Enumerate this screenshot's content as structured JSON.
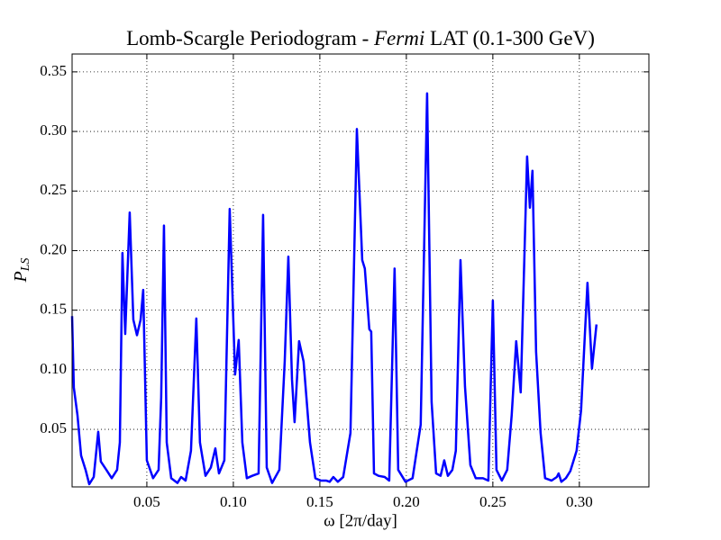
{
  "chart_data": {
    "type": "line",
    "title": [
      "Lomb-Scargle Periodogram - ",
      "Fermi",
      " LAT (0.1-300 GeV)"
    ],
    "xlabel": "ω [2π/day]",
    "ylabel": [
      "P",
      "LS"
    ],
    "xlim": [
      0.0068,
      0.3402
    ],
    "ylim": [
      0.0017,
      0.365
    ],
    "xticks": [
      0.05,
      {
        "value": 0.1,
        "label": "0.10"
      },
      0.15,
      {
        "value": 0.2,
        "label": "0.20"
      },
      0.25,
      {
        "value": 0.3,
        "label": "0.30"
      }
    ],
    "yticks": [
      0.05,
      {
        "value": 0.1,
        "label": "0.10"
      },
      0.15,
      {
        "value": 0.2,
        "label": "0.20"
      },
      0.25,
      {
        "value": 0.3,
        "label": "0.30"
      },
      0.35
    ],
    "grid": true,
    "series": [
      {
        "color": "#0000ff",
        "x": [
          0.0068,
          0.0078,
          0.0099,
          0.012,
          0.0146,
          0.0167,
          0.0193,
          0.0219,
          0.0234,
          0.0266,
          0.0297,
          0.0328,
          0.0344,
          0.0359,
          0.0375,
          0.0401,
          0.0422,
          0.0443,
          0.0464,
          0.0479,
          0.05,
          0.0536,
          0.0568,
          0.0583,
          0.0599,
          0.0615,
          0.0641,
          0.0677,
          0.0698,
          0.0724,
          0.0755,
          0.0786,
          0.0807,
          0.0839,
          0.087,
          0.0896,
          0.0917,
          0.0948,
          0.0979,
          0.101,
          0.1031,
          0.1052,
          0.1078,
          0.1109,
          0.1146,
          0.1172,
          0.1193,
          0.1224,
          0.1266,
          0.1297,
          0.1318,
          0.1339,
          0.1354,
          0.138,
          0.1406,
          0.1443,
          0.1474,
          0.1505,
          0.1536,
          0.1557,
          0.1578,
          0.1604,
          0.1635,
          0.1677,
          0.1714,
          0.1745,
          0.176,
          0.1786,
          0.1797,
          0.1813,
          0.1839,
          0.1875,
          0.1901,
          0.1932,
          0.1953,
          0.1995,
          0.2036,
          0.2083,
          0.212,
          0.2146,
          0.2172,
          0.2198,
          0.2219,
          0.224,
          0.2266,
          0.2286,
          0.2313,
          0.2339,
          0.237,
          0.2401,
          0.2443,
          0.2474,
          0.25,
          0.2521,
          0.2552,
          0.2583,
          0.2609,
          0.2635,
          0.2661,
          0.2698,
          0.2714,
          0.2729,
          0.275,
          0.2776,
          0.2802,
          0.2839,
          0.287,
          0.288,
          0.2896,
          0.2922,
          0.2948,
          0.2984,
          0.301,
          0.3047,
          0.3073,
          0.3099
        ],
        "values": [
          0.145,
          0.085,
          0.062,
          0.028,
          0.016,
          0.004,
          0.01,
          0.048,
          0.023,
          0.016,
          0.009,
          0.016,
          0.039,
          0.198,
          0.13,
          0.232,
          0.142,
          0.129,
          0.142,
          0.167,
          0.024,
          0.009,
          0.016,
          0.077,
          0.221,
          0.039,
          0.009,
          0.005,
          0.01,
          0.007,
          0.032,
          0.143,
          0.039,
          0.011,
          0.018,
          0.034,
          0.013,
          0.024,
          0.235,
          0.096,
          0.125,
          0.039,
          0.009,
          0.011,
          0.013,
          0.23,
          0.018,
          0.005,
          0.016,
          0.107,
          0.195,
          0.092,
          0.056,
          0.124,
          0.107,
          0.039,
          0.009,
          0.007,
          0.007,
          0.006,
          0.01,
          0.006,
          0.01,
          0.047,
          0.302,
          0.192,
          0.185,
          0.134,
          0.132,
          0.013,
          0.011,
          0.01,
          0.007,
          0.185,
          0.016,
          0.006,
          0.009,
          0.054,
          0.332,
          0.073,
          0.013,
          0.011,
          0.024,
          0.011,
          0.016,
          0.032,
          0.192,
          0.086,
          0.02,
          0.009,
          0.009,
          0.007,
          0.158,
          0.016,
          0.007,
          0.016,
          0.062,
          0.124,
          0.081,
          0.279,
          0.236,
          0.267,
          0.115,
          0.047,
          0.009,
          0.007,
          0.01,
          0.013,
          0.006,
          0.009,
          0.015,
          0.032,
          0.066,
          0.173,
          0.101,
          0.138
        ]
      }
    ]
  }
}
